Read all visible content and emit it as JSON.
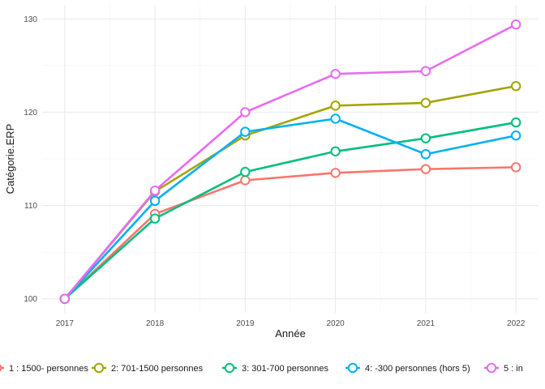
{
  "chart_data": {
    "type": "line",
    "xlabel": "Année",
    "ylabel": "Catégorie.ERP",
    "x": [
      2017,
      2018,
      2019,
      2020,
      2021,
      2022
    ],
    "x_tick_labels": [
      "2017",
      "2018",
      "2019",
      "2020",
      "2021",
      "2022"
    ],
    "y_ticks": [
      100,
      110,
      120,
      130
    ],
    "y_tick_labels": [
      "100",
      "110",
      "120",
      "130"
    ],
    "ylim": [
      98.5,
      131.5
    ],
    "xlim": [
      2016.75,
      2022.25
    ],
    "grid": true,
    "legend_position": "bottom",
    "series": [
      {
        "name": "1 : 1500- personnes",
        "color": "#F8766D",
        "values": [
          100,
          109.1,
          112.7,
          113.5,
          113.9,
          114.1
        ]
      },
      {
        "name": "2: 701-1500 personnes",
        "color": "#A3A500",
        "values": [
          100,
          111.5,
          117.5,
          120.7,
          121.0,
          122.8
        ]
      },
      {
        "name": "3: 301-700 personnes",
        "color": "#00BF7D",
        "values": [
          100,
          108.6,
          113.6,
          115.8,
          117.2,
          118.9
        ]
      },
      {
        "name": "4: -300 personnes (hors 5)",
        "color": "#00B0F6",
        "values": [
          100,
          110.5,
          117.9,
          119.3,
          115.5,
          117.5
        ]
      },
      {
        "name": "5 : in",
        "color": "#E76BF3",
        "values": [
          100,
          111.6,
          120.0,
          124.1,
          124.4,
          129.4
        ]
      }
    ]
  }
}
